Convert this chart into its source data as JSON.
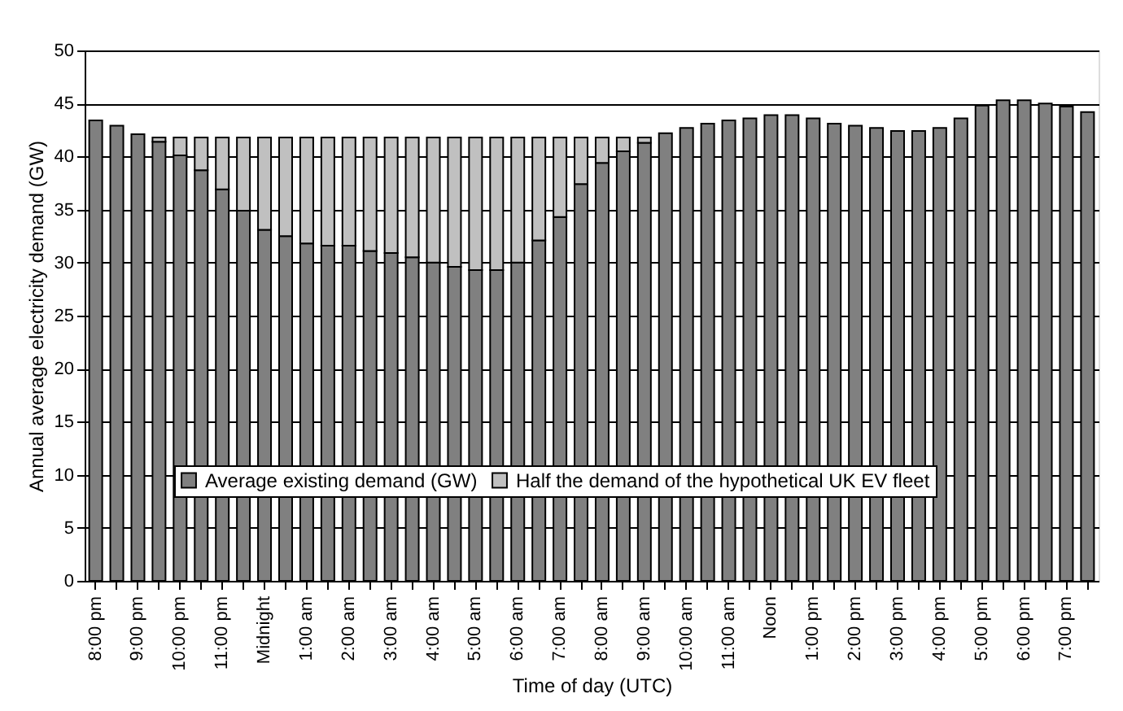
{
  "chart_data": {
    "type": "bar",
    "stacked": true,
    "xlabel": "Time of day (UTC)",
    "ylabel": "Annual average electricity demand (GW)",
    "categories": [
      "8:00 pm",
      null,
      "9:00 pm",
      null,
      "10:00 pm",
      null,
      "11:00 pm",
      null,
      "Midnight",
      null,
      "1:00 am",
      null,
      "2:00 am",
      null,
      "3:00 am",
      null,
      "4:00 am",
      null,
      "5:00 am",
      null,
      "6:00 am",
      null,
      "7:00 am",
      null,
      "8:00 am",
      null,
      "9:00 am",
      null,
      "10:00 am",
      null,
      "11:00 am",
      null,
      "Noon",
      null,
      "1:00 pm",
      null,
      "2:00 pm",
      null,
      "3:00 pm",
      null,
      "4:00 pm",
      null,
      "5:00 pm",
      null,
      "6:00 pm",
      null,
      "7:00 pm",
      null
    ],
    "series": [
      {
        "name": "Average existing demand (GW)",
        "color": "#808080",
        "values": [
          43.4,
          42.9,
          42.1,
          41.4,
          40.1,
          38.7,
          36.9,
          34.9,
          33.1,
          32.5,
          31.8,
          31.6,
          31.6,
          31.1,
          30.9,
          30.5,
          30.0,
          29.6,
          29.3,
          29.3,
          30.0,
          32.1,
          34.3,
          37.4,
          39.4,
          40.5,
          41.3,
          42.2,
          42.7,
          43.1,
          43.4,
          43.6,
          43.9,
          43.9,
          43.6,
          43.1,
          42.9,
          42.7,
          42.4,
          42.4,
          42.7,
          43.6,
          44.8,
          45.3,
          45.3,
          45.0,
          44.7,
          44.2
        ]
      },
      {
        "name": "Half the demand of the hypothetical UK EV fleet",
        "color": "#c0c0c0",
        "values": [
          null,
          null,
          null,
          0.4,
          1.7,
          3.1,
          4.9,
          6.9,
          8.7,
          9.3,
          10.0,
          10.2,
          10.2,
          10.7,
          10.9,
          11.3,
          11.8,
          12.2,
          12.5,
          12.5,
          11.8,
          9.7,
          7.5,
          4.4,
          2.4,
          1.3,
          0.5,
          null,
          null,
          null,
          null,
          null,
          null,
          null,
          null,
          null,
          null,
          null,
          null,
          null,
          null,
          null,
          null,
          null,
          null,
          null,
          null,
          null
        ]
      }
    ],
    "ylim": [
      0,
      50
    ],
    "yticks": [
      0,
      5,
      10,
      15,
      20,
      25,
      30,
      35,
      40,
      45,
      50
    ],
    "grid": "y",
    "legend": "bottom"
  }
}
